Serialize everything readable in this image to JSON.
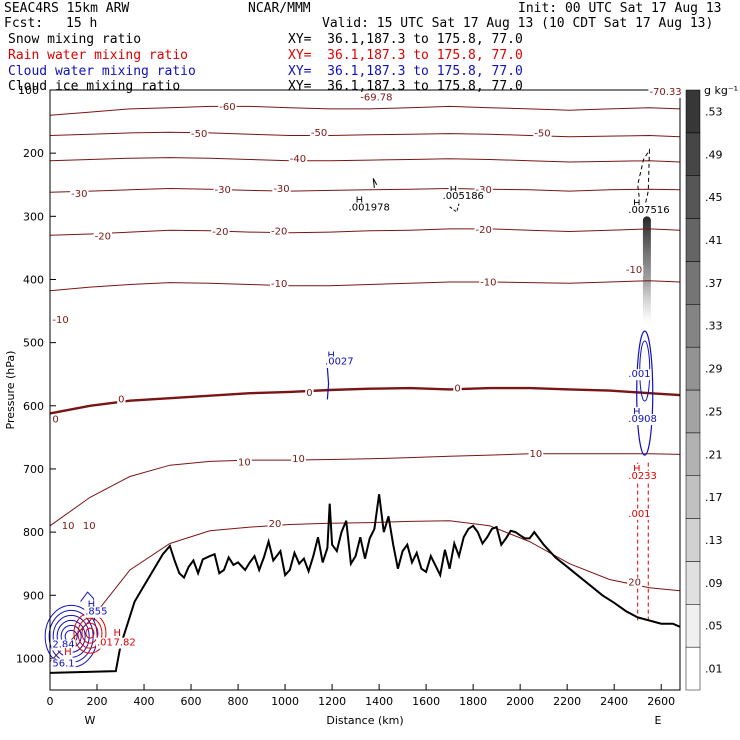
{
  "header": {
    "model": "SEAC4RS 15km ARW",
    "center": "NCAR/MMM",
    "init": "Init: 00 UTC Sat 17 Aug 13",
    "fcst_label": "Fcst:",
    "fcst_value": "15 h",
    "valid": "Valid: 15 UTC Sat 17 Aug 13 (10 CDT Sat 17 Aug 13)"
  },
  "fields": [
    {
      "label": "Snow mixing ratio",
      "xy": "XY=  36.1,187.3 to 175.8, 77.0",
      "color": "#000000"
    },
    {
      "label": "Rain water mixing ratio",
      "xy": "XY=  36.1,187.3 to 175.8, 77.0",
      "color": "#e00000"
    },
    {
      "label": "Cloud water mixing ratio",
      "xy": "XY=  36.1,187.3 to 175.8, 77.0",
      "color": "#1010c0"
    },
    {
      "label": "Cloud ice mixing ratio",
      "xy": "XY=  36.1,187.3 to 175.8, 77.0",
      "color": "#000000"
    }
  ],
  "colors": {
    "temperature": "#7a1515",
    "freezing_line": "#7a1515",
    "rain": "#e00000",
    "cloud_water": "#1010c0",
    "terrain": "#000000"
  },
  "chart_data": {
    "type": "cross-section",
    "xlabel": "Distance (km)",
    "ylabel": "Pressure (hPa)",
    "xlim": [
      0,
      2680
    ],
    "ylim": [
      1050,
      100
    ],
    "x_ticks": [
      "0",
      "200",
      "400",
      "600",
      "800",
      "1000",
      "1200",
      "1400",
      "1600",
      "1800",
      "2000",
      "2200",
      "2400",
      "2600"
    ],
    "y_ticks": [
      "1000",
      "900",
      "800",
      "700",
      "600",
      "500",
      "400",
      "300",
      "200"
    ],
    "y_top_label": "100",
    "x_end_labels": {
      "west": "W",
      "east": "E"
    },
    "colorbar": {
      "unit": "g kg⁻¹",
      "levels": [
        ".01",
        ".05",
        ".09",
        ".13",
        ".17",
        ".21",
        ".25",
        ".29",
        ".33",
        ".37",
        ".41",
        ".45",
        ".49",
        ".53"
      ]
    },
    "terrain": {
      "x": [
        0,
        280,
        300,
        330,
        360,
        400,
        440,
        480,
        510,
        530,
        550,
        570,
        590,
        610,
        630,
        650,
        680,
        700,
        720,
        740,
        760,
        780,
        800,
        830,
        850,
        870,
        890,
        910,
        930,
        950,
        980,
        1000,
        1020,
        1040,
        1060,
        1080,
        1100,
        1120,
        1140,
        1160,
        1180,
        1190,
        1200,
        1220,
        1240,
        1260,
        1280,
        1300,
        1320,
        1340,
        1360,
        1380,
        1400,
        1420,
        1440,
        1460,
        1480,
        1500,
        1520,
        1540,
        1560,
        1580,
        1600,
        1620,
        1640,
        1660,
        1680,
        1700,
        1720,
        1740,
        1760,
        1780,
        1800,
        1820,
        1840,
        1860,
        1880,
        1900,
        1920,
        1940,
        1960,
        1980,
        2000,
        2020,
        2040,
        2060,
        2100,
        2150,
        2200,
        2250,
        2300,
        2350,
        2400,
        2450,
        2500,
        2550,
        2600,
        2650,
        2680
      ],
      "y": [
        1023,
        1020,
        980,
        945,
        910,
        885,
        860,
        835,
        822,
        845,
        865,
        872,
        855,
        845,
        865,
        843,
        838,
        835,
        865,
        860,
        840,
        852,
        848,
        860,
        848,
        838,
        860,
        840,
        815,
        845,
        830,
        868,
        860,
        833,
        850,
        842,
        862,
        838,
        808,
        848,
        825,
        755,
        820,
        830,
        800,
        782,
        850,
        838,
        808,
        842,
        810,
        795,
        740,
        800,
        775,
        820,
        858,
        830,
        820,
        848,
        833,
        858,
        863,
        838,
        853,
        868,
        828,
        858,
        818,
        838,
        808,
        795,
        790,
        800,
        818,
        808,
        795,
        792,
        820,
        810,
        798,
        800,
        805,
        810,
        810,
        800,
        820,
        840,
        855,
        870,
        885,
        900,
        912,
        925,
        935,
        940,
        945,
        945,
        950
      ]
    },
    "temperature_contours": [
      {
        "value": -60,
        "p": [
          140,
          135,
          130,
          128,
          126,
          126,
          128,
          130,
          130,
          128,
          126,
          128,
          130,
          132,
          130,
          128,
          130
        ]
      },
      {
        "value": -50,
        "p": [
          172,
          170,
          168,
          167,
          168,
          170,
          172,
          172,
          171,
          170,
          169,
          170,
          172,
          174,
          173,
          172,
          174
        ]
      },
      {
        "value": -40,
        "p": [
          212,
          210,
          208,
          207,
          208,
          210,
          212,
          212,
          211,
          210,
          209,
          210,
          212,
          214,
          213,
          212,
          214
        ]
      },
      {
        "value": -30,
        "p": [
          262,
          260,
          258,
          256,
          257,
          259,
          260,
          259,
          258,
          257,
          256,
          257,
          258,
          260,
          258,
          257,
          258
        ]
      },
      {
        "value": -20,
        "p": [
          330,
          328,
          325,
          322,
          323,
          325,
          326,
          325,
          323,
          322,
          320,
          320,
          322,
          324,
          322,
          320,
          322
        ]
      },
      {
        "value": -10,
        "p": [
          418,
          412,
          408,
          405,
          406,
          408,
          410,
          410,
          408,
          406,
          404,
          404,
          405,
          406,
          404,
          402,
          404
        ]
      },
      {
        "value": 0,
        "p": [
          612,
          600,
          592,
          588,
          584,
          580,
          578,
          575,
          573,
          572,
          574,
          572,
          572,
          574,
          576,
          580,
          583
        ]
      },
      {
        "value": 10,
        "p": [
          790,
          745,
          712,
          694,
          688,
          686,
          686,
          685,
          684,
          682,
          680,
          678,
          676,
          676,
          676,
          676,
          677
        ]
      },
      {
        "value": 20,
        "p": [
          1005,
          940,
          860,
          818,
          798,
          792,
          788,
          786,
          785,
          783,
          782,
          790,
          815,
          850,
          875,
          888,
          893
        ]
      }
    ],
    "temperature_contour_x": [
      0,
      170,
      340,
      510,
      680,
      850,
      1020,
      1190,
      1360,
      1530,
      1700,
      1870,
      2040,
      2210,
      2380,
      2550,
      2680
    ],
    "labels": [
      {
        "text": "-69.78",
        "x": 1320,
        "p": 112,
        "color": "temperature"
      },
      {
        "text": "-70.33",
        "x": 2550,
        "p": 103,
        "color": "temperature"
      },
      {
        "text": "-60",
        "x": 720,
        "p": 127,
        "color": "temperature"
      },
      {
        "text": "-50",
        "x": 600,
        "p": 170,
        "color": "temperature"
      },
      {
        "text": "-50",
        "x": 1110,
        "p": 168,
        "color": "temperature"
      },
      {
        "text": "-50",
        "x": 2060,
        "p": 169,
        "color": "temperature"
      },
      {
        "text": "-40",
        "x": 1020,
        "p": 209,
        "color": "temperature"
      },
      {
        "text": "-30",
        "x": 700,
        "p": 258,
        "color": "temperature"
      },
      {
        "text": "-30",
        "x": 950,
        "p": 257,
        "color": "temperature"
      },
      {
        "text": "-30",
        "x": 1810,
        "p": 258,
        "color": "temperature"
      },
      {
        "text": "-20",
        "x": 690,
        "p": 325,
        "color": "temperature"
      },
      {
        "text": "-20",
        "x": 940,
        "p": 324,
        "color": "temperature"
      },
      {
        "text": "-20",
        "x": 1810,
        "p": 322,
        "color": "temperature"
      },
      {
        "text": "-10",
        "x": 940,
        "p": 407,
        "color": "temperature"
      },
      {
        "text": "-10",
        "x": 1830,
        "p": 405,
        "color": "temperature"
      },
      {
        "text": "0",
        "x": 1720,
        "p": 573,
        "color": "temperature"
      },
      {
        "text": "0",
        "x": 1090,
        "p": 580,
        "color": "temperature"
      },
      {
        "text": "0",
        "x": 290,
        "p": 590,
        "color": "temperature"
      },
      {
        "text": "0",
        "x": 10,
        "p": 622,
        "color": "temperature"
      },
      {
        "text": "10",
        "x": 1030,
        "p": 684,
        "color": "temperature"
      },
      {
        "text": "10",
        "x": 2040,
        "p": 676,
        "color": "temperature"
      },
      {
        "text": "10",
        "x": 800,
        "p": 690,
        "color": "temperature"
      },
      {
        "text": "-10",
        "x": 10,
        "p": 464,
        "color": "temperature"
      },
      {
        "text": "-10",
        "x": 2450,
        "p": 385,
        "color": "temperature"
      },
      {
        "text": "10",
        "x": 50,
        "p": 790,
        "color": "temperature"
      },
      {
        "text": "10",
        "x": 140,
        "p": 790,
        "color": "temperature"
      },
      {
        "text": "20",
        "x": 930,
        "p": 787,
        "color": "temperature"
      },
      {
        "text": "20",
        "x": 2460,
        "p": 880,
        "color": "temperature"
      },
      {
        "text": "-30",
        "x": 90,
        "p": 265,
        "color": "temperature"
      },
      {
        "text": "-20",
        "x": 190,
        "p": 332,
        "color": "temperature"
      },
      {
        "text": "H",
        "x": 1180,
        "p": 520,
        "color": "cloud_water"
      },
      {
        "text": ".0027",
        "x": 1170,
        "p": 530,
        "color": "cloud_water"
      },
      {
        "text": "H",
        "x": 1300,
        "p": 275,
        "color": "terrain"
      },
      {
        "text": ".001978",
        "x": 1270,
        "p": 286,
        "color": "terrain"
      },
      {
        "text": "H",
        "x": 1700,
        "p": 258,
        "color": "terrain"
      },
      {
        "text": ".005186",
        "x": 1670,
        "p": 268,
        "color": "terrain"
      },
      {
        "text": "H",
        "x": 2480,
        "p": 280,
        "color": "terrain"
      },
      {
        "text": ".007516",
        "x": 2460,
        "p": 290,
        "color": "terrain"
      },
      {
        "text": ".001",
        "x": 2460,
        "p": 550,
        "color": "cloud_water"
      },
      {
        "text": "H",
        "x": 2480,
        "p": 610,
        "color": "cloud_water"
      },
      {
        "text": ".0908",
        "x": 2460,
        "p": 621,
        "color": "cloud_water"
      },
      {
        "text": "H",
        "x": 2480,
        "p": 700,
        "color": "rain"
      },
      {
        "text": ".0233",
        "x": 2460,
        "p": 711,
        "color": "rain"
      },
      {
        "text": ".001",
        "x": 2460,
        "p": 771,
        "color": "rain"
      },
      {
        "text": "H",
        "x": 160,
        "p": 915,
        "color": "cloud_water"
      },
      {
        "text": ".855",
        "x": 150,
        "p": 926,
        "color": "cloud_water"
      },
      {
        "text": "H",
        "x": 270,
        "p": 960,
        "color": "rain"
      },
      {
        "text": ".01",
        "x": 200,
        "p": 975,
        "color": "rain"
      },
      {
        "text": "7.82",
        "x": 270,
        "p": 975,
        "color": "rain"
      },
      {
        "text": "2.84",
        "x": 10,
        "p": 978,
        "color": "cloud_water"
      },
      {
        "text": "H",
        "x": 60,
        "p": 990,
        "color": "rain"
      },
      {
        "text": "56.1",
        "x": 10,
        "p": 1008,
        "color": "cloud_water"
      }
    ]
  }
}
